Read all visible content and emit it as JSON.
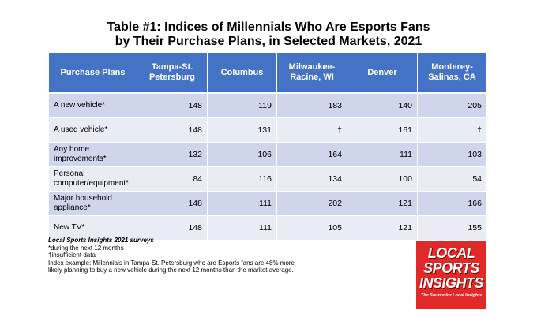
{
  "title": {
    "line1": "Table #1: Indices of Millennials Who Are Esports Fans",
    "line2": "by Their Purchase Plans, in Selected Markets, 2021"
  },
  "table": {
    "headers": [
      "Purchase Plans",
      "Tampa-St. Petersburg",
      "Columbus",
      "Milwaukee-Racine, WI",
      "Denver",
      "Monterey-Salinas, CA"
    ],
    "rows": [
      {
        "label": "A new vehicle*",
        "values": [
          "148",
          "119",
          "183",
          "140",
          "205"
        ]
      },
      {
        "label": "A used vehicle*",
        "values": [
          "148",
          "131",
          "†",
          "161",
          "†"
        ]
      },
      {
        "label": "Any home improvements*",
        "values": [
          "132",
          "106",
          "164",
          "111",
          "103"
        ]
      },
      {
        "label": "Personal computer/equipment*",
        "values": [
          "84",
          "116",
          "134",
          "100",
          "54"
        ]
      },
      {
        "label": "Major household appliance*",
        "values": [
          "148",
          "111",
          "202",
          "121",
          "166"
        ]
      },
      {
        "label": "New TV*",
        "values": [
          "148",
          "111",
          "105",
          "121",
          "155"
        ]
      }
    ]
  },
  "notes": {
    "source": "Local Sports Insights 2021 surveys",
    "line1": "*during the next 12 months",
    "line2": "†insufficient data",
    "line3": "Index example: Millennials in Tampa-St. Petersburg who are Esports fans are 48% more likely planning to buy a new vehicle during the next 12 months than the market average."
  },
  "logo": {
    "line1": "LOCAL",
    "line2": "SPORTS",
    "line3": "INSIGHTS",
    "tagline": "The Source for Local Insights",
    "color": "#e02a2a"
  },
  "colors": {
    "header_bg": "#4472c4",
    "row_odd": "#cfd5ea",
    "row_even": "#e9ebf5"
  }
}
